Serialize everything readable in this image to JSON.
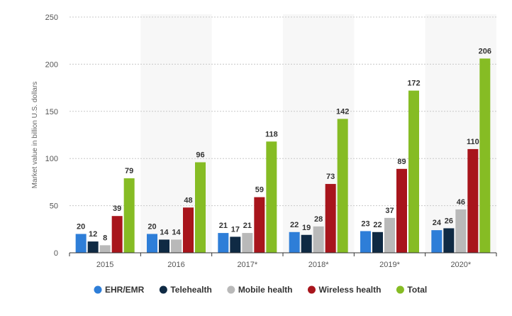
{
  "chart_data": {
    "type": "bar",
    "title": "",
    "xlabel": "",
    "ylabel": "Market value in billion U.S. dollars",
    "ylim": [
      0,
      250
    ],
    "yticks": [
      0,
      50,
      100,
      150,
      200,
      250
    ],
    "categories": [
      "2015",
      "2016",
      "2017*",
      "2018*",
      "2019*",
      "2020*"
    ],
    "series": [
      {
        "name": "EHR/EMR",
        "color": "#2e7ed8",
        "values": [
          20,
          20,
          21,
          22,
          23,
          24
        ]
      },
      {
        "name": "Telehealth",
        "color": "#0f2a44",
        "values": [
          12,
          14,
          17,
          19,
          22,
          26
        ]
      },
      {
        "name": "Mobile health",
        "color": "#b9b9b9",
        "values": [
          8,
          14,
          21,
          28,
          37,
          46
        ]
      },
      {
        "name": "Wireless health",
        "color": "#a8151c",
        "values": [
          39,
          48,
          59,
          73,
          89,
          110
        ]
      },
      {
        "name": "Total",
        "color": "#86bc24",
        "values": [
          79,
          96,
          118,
          142,
          172,
          206
        ]
      }
    ],
    "grid": true,
    "legend_position": "bottom"
  }
}
